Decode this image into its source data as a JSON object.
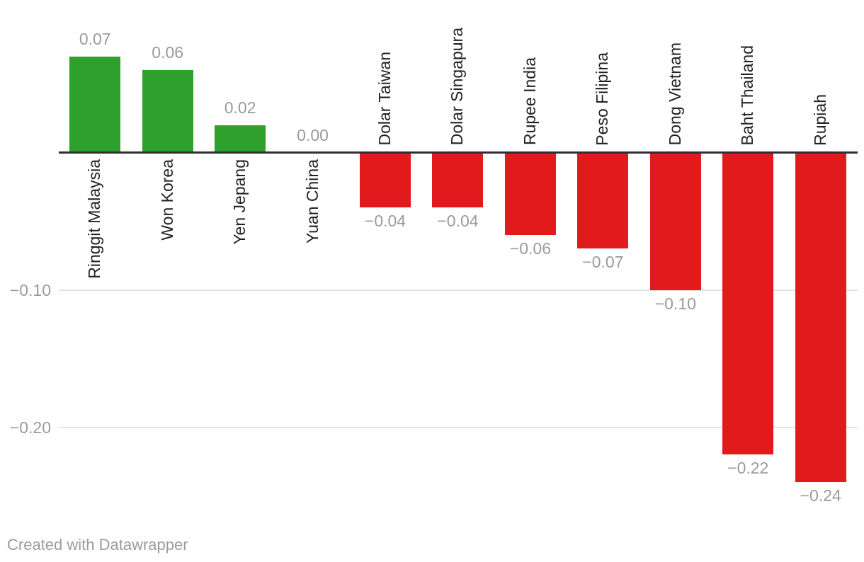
{
  "chart_data": {
    "type": "bar",
    "title": "",
    "xlabel": "",
    "ylabel": "",
    "legend": "none",
    "grid": "horizontal",
    "ylim": [
      -0.28,
      0.11
    ],
    "categories": [
      "Ringgit Malaysia",
      "Won Korea",
      "Yen Jepang",
      "Yuan China",
      "Dolar Taiwan",
      "Dolar Singapura",
      "Rupee India",
      "Peso Filipina",
      "Dong Vietnam",
      "Baht Thailand",
      "Rupiah"
    ],
    "values": [
      0.07,
      0.06,
      0.02,
      0,
      -0.04,
      -0.04,
      -0.06,
      -0.07,
      -0.1,
      -0.22,
      -0.24
    ],
    "value_labels": [
      "0.07",
      "0.06",
      "0.02",
      "0.00",
      "−0.04",
      "−0.04",
      "−0.06",
      "−0.07",
      "−0.10",
      "−0.22",
      "−0.24"
    ],
    "y_ticks": [
      {
        "value": -0.1,
        "label": "−0.10"
      },
      {
        "value": -0.2,
        "label": "−0.20"
      }
    ],
    "colors": {
      "positive": "#2da12c",
      "negative": "#e21a1c",
      "axis_line": "#2f2f33",
      "gridline": "#e3e3e3",
      "value_label_text": "#9a9a9a",
      "category_label_text": "#222222"
    }
  },
  "footer": {
    "credit": "Created with Datawrapper"
  }
}
